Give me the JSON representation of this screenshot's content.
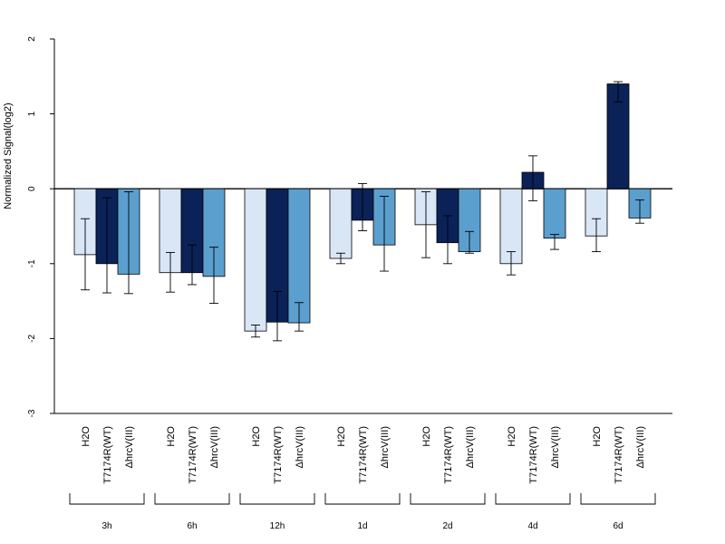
{
  "chart_data": {
    "type": "bar",
    "ylabel": "Normalized Signal(log2)",
    "ylim": [
      -3,
      2
    ],
    "yticks": [
      2,
      1,
      0,
      -1,
      -2,
      -3
    ],
    "grid": false,
    "groups": [
      "3h",
      "6h",
      "12h",
      "1d",
      "2d",
      "4d",
      "6d"
    ],
    "series": [
      {
        "name": "H2O",
        "color": "#d8e6f6",
        "values": [
          -0.88,
          -1.12,
          -1.9,
          -0.93,
          -0.48,
          -1.0,
          -0.63
        ],
        "err_low": [
          -1.35,
          -1.38,
          -1.98,
          -1.0,
          -0.92,
          -1.15,
          -0.84
        ],
        "err_high": [
          -0.4,
          -0.85,
          -1.82,
          -0.86,
          -0.04,
          -0.84,
          -0.4
        ]
      },
      {
        "name": "T7174R(WT)",
        "color": "#0a2257",
        "values": [
          -1.0,
          -1.12,
          -1.78,
          -0.42,
          -0.72,
          0.22,
          1.4
        ],
        "err_low": [
          -1.39,
          -1.28,
          -2.03,
          -0.56,
          -1.0,
          -0.16,
          1.16
        ],
        "err_high": [
          -0.12,
          -0.75,
          -1.37,
          0.07,
          -0.36,
          0.44,
          1.43
        ]
      },
      {
        "name": "ΔhrcV(III)",
        "color": "#5b9fcf",
        "values": [
          -1.14,
          -1.17,
          -1.79,
          -0.75,
          -0.84,
          -0.66,
          -0.39
        ],
        "err_low": [
          -1.4,
          -1.53,
          -1.9,
          -1.1,
          -0.86,
          -0.81,
          -0.46
        ],
        "err_high": [
          -0.04,
          -0.78,
          -1.52,
          -0.1,
          -0.57,
          -0.61,
          -0.15
        ]
      }
    ]
  }
}
